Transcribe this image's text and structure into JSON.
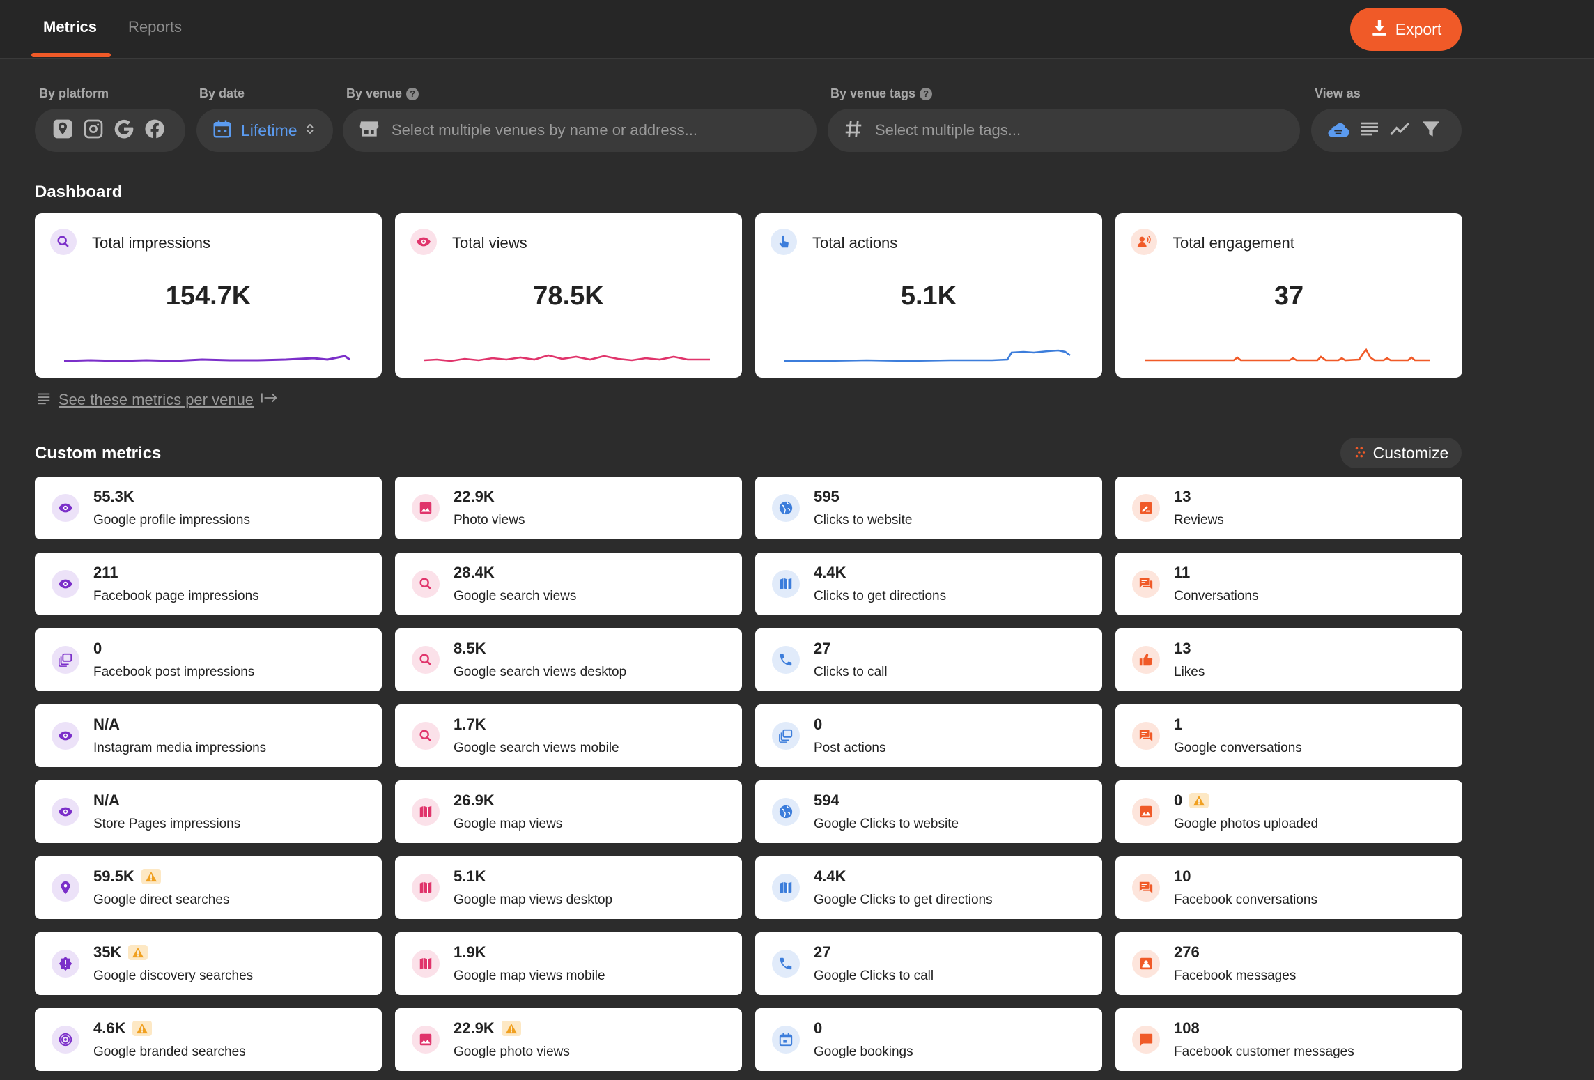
{
  "tabs": [
    {
      "label": "Metrics"
    },
    {
      "label": "Reports"
    }
  ],
  "export_label": "Export",
  "filters": {
    "platform": {
      "label": "By platform"
    },
    "date": {
      "label": "By date",
      "value": "Lifetime"
    },
    "venue": {
      "label": "By venue",
      "placeholder": "Select multiple venues by name or address..."
    },
    "tags": {
      "label": "By venue tags",
      "placeholder": "Select multiple tags..."
    },
    "view_as": {
      "label": "View as"
    }
  },
  "dashboard": {
    "title": "Dashboard",
    "cards": [
      {
        "label": "Total impressions",
        "value": "154.7K",
        "color": "#7b2fc9",
        "bg": "#ece2f8",
        "icon": "search-icon"
      },
      {
        "label": "Total views",
        "value": "78.5K",
        "color": "#e0346b",
        "bg": "#fbe1e9",
        "icon": "eye-icon"
      },
      {
        "label": "Total actions",
        "value": "5.1K",
        "color": "#3c7ddb",
        "bg": "#e1ebfa",
        "icon": "touch-icon"
      },
      {
        "label": "Total engagement",
        "value": "37",
        "color": "#f05a28",
        "bg": "#fde5dc",
        "icon": "engagement-icon"
      }
    ],
    "per_venue_link": "See these metrics per venue"
  },
  "custom": {
    "title": "Custom metrics",
    "customize_label": "Customize",
    "columns": [
      {
        "color": "#7b2fc9",
        "bg": "#ece2f8",
        "items": [
          {
            "value": "55.3K",
            "label": "Google profile impressions",
            "icon": "eye-icon",
            "warn": false
          },
          {
            "value": "211",
            "label": "Facebook page impressions",
            "icon": "eye-icon",
            "warn": false
          },
          {
            "value": "0",
            "label": "Facebook post impressions",
            "icon": "layers-icon",
            "warn": false
          },
          {
            "value": "N/A",
            "label": "Instagram media impressions",
            "icon": "eye-icon",
            "warn": false
          },
          {
            "value": "N/A",
            "label": "Store Pages impressions",
            "icon": "eye-icon",
            "warn": false
          },
          {
            "value": "59.5K",
            "label": "Google direct searches",
            "icon": "pin-icon",
            "warn": true
          },
          {
            "value": "35K",
            "label": "Google discovery searches",
            "icon": "alert-badge-icon",
            "warn": true
          },
          {
            "value": "4.6K",
            "label": "Google branded searches",
            "icon": "target-icon",
            "warn": true
          }
        ]
      },
      {
        "color": "#e0346b",
        "bg": "#fbe1e9",
        "items": [
          {
            "value": "22.9K",
            "label": "Photo views",
            "icon": "image-icon",
            "warn": false
          },
          {
            "value": "28.4K",
            "label": "Google search views",
            "icon": "search-icon",
            "warn": false
          },
          {
            "value": "8.5K",
            "label": "Google search views desktop",
            "icon": "search-icon",
            "warn": false
          },
          {
            "value": "1.7K",
            "label": "Google search views mobile",
            "icon": "search-icon",
            "warn": false
          },
          {
            "value": "26.9K",
            "label": "Google map views",
            "icon": "map-icon",
            "warn": false
          },
          {
            "value": "5.1K",
            "label": "Google map views desktop",
            "icon": "map-icon",
            "warn": false
          },
          {
            "value": "1.9K",
            "label": "Google map views mobile",
            "icon": "map-icon",
            "warn": false
          },
          {
            "value": "22.9K",
            "label": "Google photo views",
            "icon": "image-icon",
            "warn": true
          }
        ]
      },
      {
        "color": "#3c7ddb",
        "bg": "#e1ebfa",
        "items": [
          {
            "value": "595",
            "label": "Clicks to website",
            "icon": "globe-icon",
            "warn": false
          },
          {
            "value": "4.4K",
            "label": "Clicks to get directions",
            "icon": "map-icon",
            "warn": false
          },
          {
            "value": "27",
            "label": "Clicks to call",
            "icon": "phone-icon",
            "warn": false
          },
          {
            "value": "0",
            "label": "Post actions",
            "icon": "layers-icon",
            "warn": false
          },
          {
            "value": "594",
            "label": "Google Clicks to website",
            "icon": "globe-icon",
            "warn": false
          },
          {
            "value": "4.4K",
            "label": "Google Clicks to get directions",
            "icon": "map-icon",
            "warn": false
          },
          {
            "value": "27",
            "label": "Google Clicks to call",
            "icon": "phone-icon",
            "warn": false
          },
          {
            "value": "0",
            "label": "Google bookings",
            "icon": "calendar-icon",
            "warn": false
          }
        ]
      },
      {
        "color": "#f05a28",
        "bg": "#fde5dc",
        "items": [
          {
            "value": "13",
            "label": "Reviews",
            "icon": "review-icon",
            "warn": false
          },
          {
            "value": "11",
            "label": "Conversations",
            "icon": "chat-icon",
            "warn": false
          },
          {
            "value": "13",
            "label": "Likes",
            "icon": "thumb-up-icon",
            "warn": false
          },
          {
            "value": "1",
            "label": "Google conversations",
            "icon": "chat-icon",
            "warn": false
          },
          {
            "value": "0",
            "label": "Google photos uploaded",
            "icon": "image-icon",
            "warn": true
          },
          {
            "value": "10",
            "label": "Facebook conversations",
            "icon": "chat-icon",
            "warn": false
          },
          {
            "value": "276",
            "label": "Facebook messages",
            "icon": "contact-icon",
            "warn": false
          },
          {
            "value": "108",
            "label": "Facebook customer messages",
            "icon": "message-icon",
            "warn": false
          }
        ]
      }
    ]
  }
}
